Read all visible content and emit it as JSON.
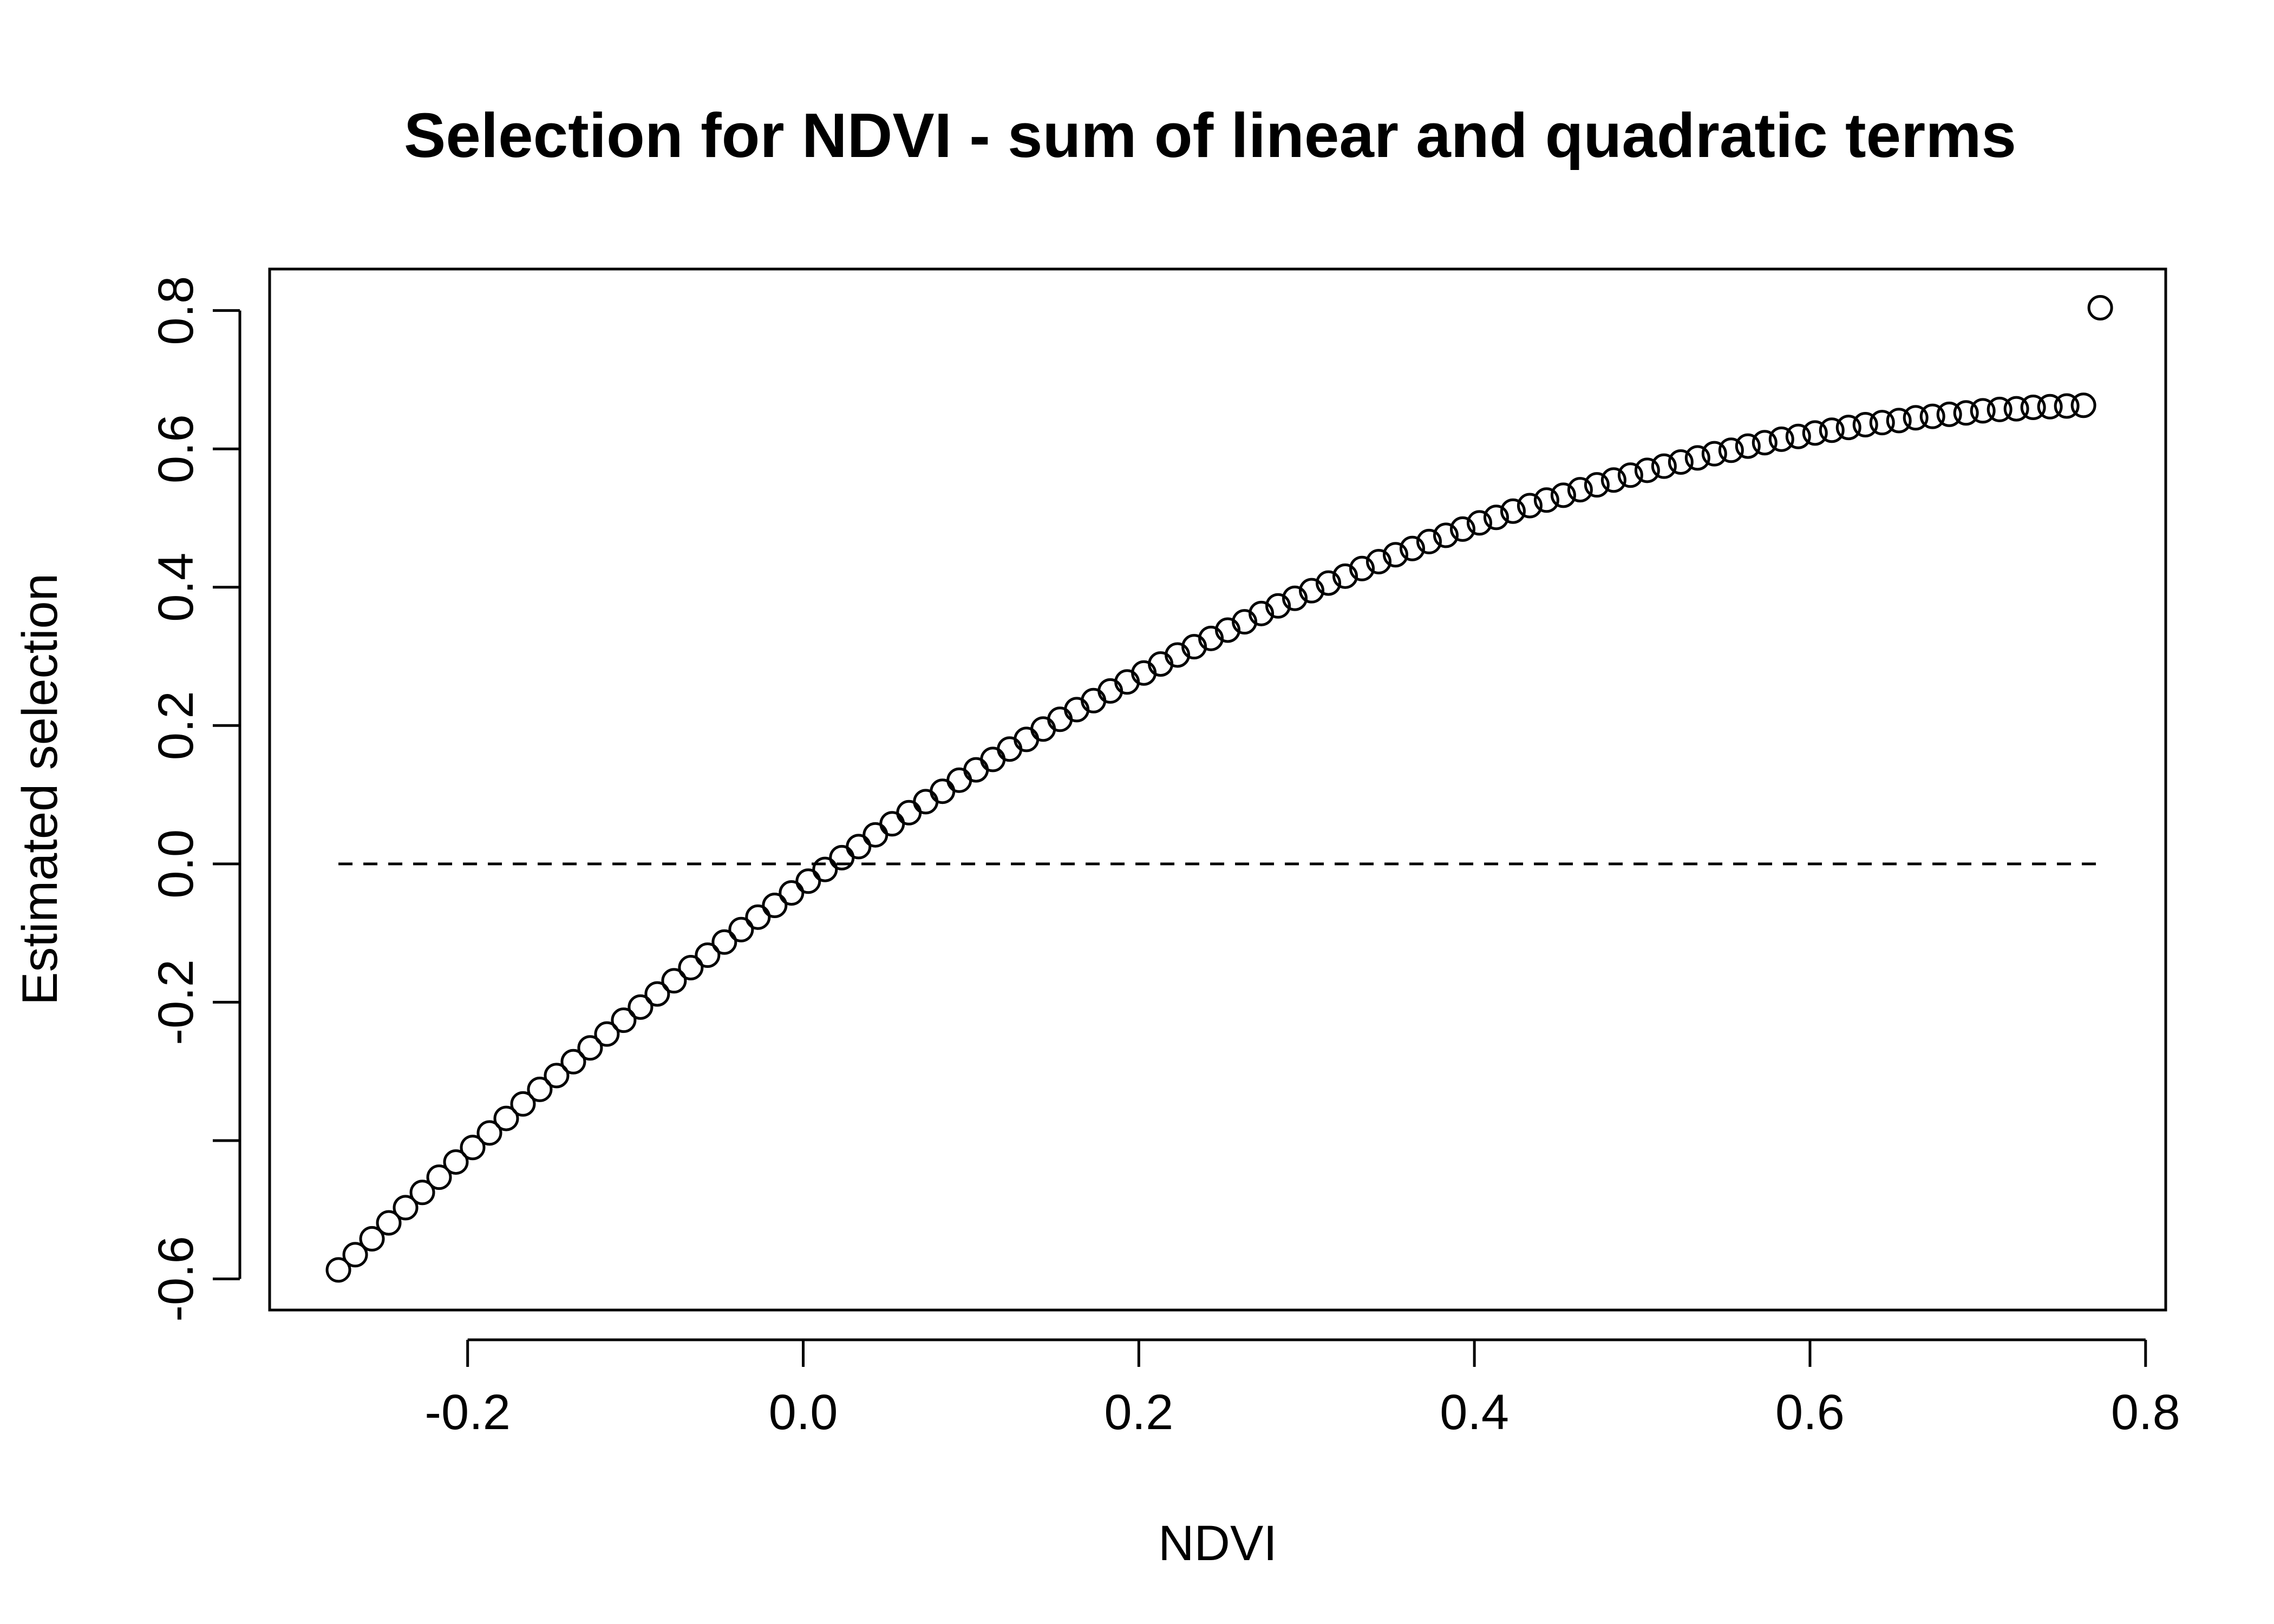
{
  "chart_data": {
    "type": "scatter",
    "title": "Selection for NDVI - sum of linear and quadratic terms",
    "xlabel": "NDVI",
    "ylabel": "Estimated selection",
    "xlim": [
      -0.318,
      0.812
    ],
    "ylim": [
      -0.645,
      0.86
    ],
    "x_ticks": [
      -0.2,
      0.0,
      0.2,
      0.4,
      0.6,
      0.8
    ],
    "x_tick_labels": [
      "-0.2",
      "0.0",
      "0.2",
      "0.4",
      "0.6",
      "0.8"
    ],
    "y_ticks": [
      -0.6,
      -0.4,
      -0.2,
      0.0,
      0.2,
      0.4,
      0.6,
      0.8
    ],
    "y_tick_labels": [
      "-0.6",
      "",
      "-0.2",
      "0.0",
      "0.2",
      "0.4",
      "0.6",
      "0.8"
    ],
    "reference_line": {
      "y": 0.0,
      "x_from": -0.277,
      "x_to": 0.773,
      "style": "dashed"
    },
    "grid": false,
    "series": [
      {
        "marker": "open-circle",
        "x": [
          -0.277,
          -0.267,
          -0.257,
          -0.247,
          -0.237,
          -0.227,
          -0.217,
          -0.207,
          -0.197,
          -0.187,
          -0.177,
          -0.167,
          -0.157,
          -0.147,
          -0.137,
          -0.127,
          -0.117,
          -0.107,
          -0.097,
          -0.087,
          -0.077,
          -0.067,
          -0.057,
          -0.047,
          -0.037,
          -0.027,
          -0.017,
          -0.007,
          0.003,
          0.013,
          0.023,
          0.033,
          0.043,
          0.053,
          0.063,
          0.073,
          0.083,
          0.093,
          0.103,
          0.113,
          0.123,
          0.133,
          0.143,
          0.153,
          0.163,
          0.173,
          0.183,
          0.193,
          0.203,
          0.213,
          0.223,
          0.233,
          0.243,
          0.253,
          0.263,
          0.273,
          0.283,
          0.293,
          0.303,
          0.313,
          0.323,
          0.333,
          0.343,
          0.353,
          0.363,
          0.373,
          0.383,
          0.393,
          0.403,
          0.413,
          0.423,
          0.433,
          0.443,
          0.453,
          0.463,
          0.473,
          0.483,
          0.493,
          0.503,
          0.513,
          0.523,
          0.533,
          0.543,
          0.553,
          0.563,
          0.573,
          0.583,
          0.593,
          0.603,
          0.613,
          0.623,
          0.633,
          0.643,
          0.653,
          0.663,
          0.673,
          0.683,
          0.693,
          0.703,
          0.713,
          0.723,
          0.733,
          0.743,
          0.753,
          0.763,
          0.773
        ],
        "y": [
          -0.587,
          -0.565,
          -0.542,
          -0.519,
          -0.497,
          -0.475,
          -0.453,
          -0.431,
          -0.41,
          -0.389,
          -0.368,
          -0.347,
          -0.326,
          -0.306,
          -0.286,
          -0.266,
          -0.246,
          -0.226,
          -0.207,
          -0.188,
          -0.169,
          -0.15,
          -0.132,
          -0.113,
          -0.095,
          -0.077,
          -0.06,
          -0.042,
          -0.025,
          -0.008,
          0.009,
          0.025,
          0.042,
          0.058,
          0.074,
          0.09,
          0.105,
          0.121,
          0.136,
          0.151,
          0.166,
          0.18,
          0.195,
          0.209,
          0.223,
          0.236,
          0.25,
          0.263,
          0.276,
          0.289,
          0.302,
          0.314,
          0.326,
          0.338,
          0.35,
          0.362,
          0.373,
          0.384,
          0.395,
          0.406,
          0.416,
          0.427,
          0.437,
          0.447,
          0.456,
          0.466,
          0.475,
          0.484,
          0.493,
          0.501,
          0.51,
          0.518,
          0.526,
          0.533,
          0.541,
          0.548,
          0.555,
          0.562,
          0.569,
          0.575,
          0.581,
          0.587,
          0.593,
          0.598,
          0.604,
          0.609,
          0.614,
          0.618,
          0.623,
          0.627,
          0.631,
          0.635,
          0.638,
          0.641,
          0.645,
          0.647,
          0.65,
          0.652,
          0.655,
          0.657,
          0.658,
          0.66,
          0.661,
          0.662,
          0.663,
          0.804
        ]
      }
    ]
  }
}
